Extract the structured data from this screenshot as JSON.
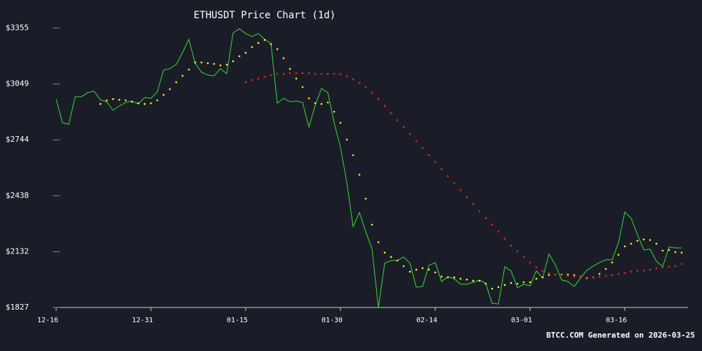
{
  "chart_data": {
    "type": "line",
    "title": "ETHUSDT Price Chart (1d)",
    "annotation": "BTCC.COM Generated on 2026-03-25",
    "categories": [
      "12-16",
      null,
      null,
      null,
      null,
      null,
      null,
      null,
      null,
      null,
      null,
      null,
      null,
      null,
      null,
      "12-31",
      null,
      null,
      null,
      null,
      null,
      null,
      null,
      null,
      null,
      null,
      null,
      null,
      null,
      null,
      "01-15",
      null,
      null,
      null,
      null,
      null,
      null,
      null,
      null,
      null,
      null,
      null,
      null,
      null,
      null,
      "01-30",
      null,
      null,
      null,
      null,
      null,
      null,
      null,
      null,
      null,
      null,
      null,
      null,
      null,
      null,
      "02-14",
      null,
      null,
      null,
      null,
      null,
      null,
      null,
      null,
      null,
      null,
      null,
      null,
      null,
      null,
      "03-01",
      null,
      null,
      null,
      null,
      null,
      null,
      null,
      null,
      null,
      null,
      null,
      null,
      null,
      null,
      "03-16",
      null,
      null,
      null,
      null,
      null,
      null,
      null,
      null,
      null
    ],
    "ylim": [
      1827,
      3355
    ],
    "yticks": [
      {
        "value": 1827,
        "label": "$1827"
      },
      {
        "value": 2132,
        "label": "$2132"
      },
      {
        "value": 2438,
        "label": "$2438"
      },
      {
        "value": 2744,
        "label": "$2744"
      },
      {
        "value": 3049,
        "label": "$3049"
      },
      {
        "value": 3355,
        "label": "$3355"
      }
    ],
    "series": [
      {
        "color": "#33dd33",
        "style": "line",
        "values": [
          2967,
          2837,
          2829,
          2979,
          2979,
          3002,
          3010,
          2963,
          2952,
          2906,
          2929,
          2948,
          2956,
          2940,
          2975,
          2971,
          3006,
          3125,
          3133,
          3156,
          3221,
          3294,
          3163,
          3113,
          3098,
          3094,
          3133,
          3106,
          3328,
          3351,
          3325,
          3309,
          3325,
          3294,
          3271,
          2944,
          2971,
          2952,
          2956,
          2948,
          2814,
          2933,
          3025,
          3002,
          2837,
          2703,
          2511,
          2269,
          2346,
          2242,
          2146,
          1827,
          2069,
          2084,
          2084,
          2103,
          2069,
          1938,
          1942,
          2057,
          2073,
          1969,
          1996,
          1984,
          1954,
          1954,
          1965,
          1977,
          1958,
          1850,
          1846,
          2050,
          2027,
          1935,
          1954,
          1946,
          2027,
          1988,
          2119,
          2061,
          1977,
          1969,
          1942,
          1988,
          2031,
          2054,
          2073,
          2088,
          2088,
          2180,
          2349,
          2315,
          2226,
          2142,
          2146,
          2080,
          2050,
          2157,
          2153,
          2153
        ]
      },
      {
        "color": "#ffee33",
        "style": "points",
        "values": [
          null,
          null,
          null,
          null,
          null,
          null,
          null,
          2940,
          2960,
          2967,
          2963,
          2960,
          2952,
          2944,
          2940,
          2944,
          2960,
          2990,
          3021,
          3059,
          3094,
          3128,
          3167,
          3167,
          3163,
          3159,
          3151,
          3155,
          3174,
          3201,
          3220,
          3251,
          3274,
          3290,
          3267,
          3240,
          3190,
          3132,
          3079,
          3032,
          2971,
          2944,
          2940,
          2948,
          2898,
          2837,
          2745,
          2660,
          2553,
          2422,
          2280,
          2184,
          2127,
          2103,
          2084,
          2053,
          2023,
          2034,
          2042,
          2034,
          2019,
          1996,
          1992,
          1992,
          1984,
          1980,
          1973,
          1973,
          1957,
          1930,
          1938,
          1950,
          1961,
          1957,
          1965,
          1965,
          1984,
          1992,
          2004,
          2007,
          2007,
          2007,
          2004,
          1996,
          1988,
          1992,
          2011,
          2038,
          2073,
          2115,
          2161,
          2176,
          2192,
          2199,
          2196,
          2176,
          2138,
          2142,
          2130,
          2127
        ]
      },
      {
        "color": "#ee2222",
        "style": "points",
        "values": [
          null,
          null,
          null,
          null,
          null,
          null,
          null,
          null,
          null,
          null,
          null,
          null,
          null,
          null,
          null,
          null,
          null,
          null,
          null,
          null,
          null,
          null,
          null,
          null,
          null,
          null,
          null,
          null,
          null,
          null,
          3059,
          3071,
          3079,
          3090,
          3098,
          3105,
          3105,
          3109,
          3109,
          3109,
          3109,
          3105,
          3105,
          3105,
          3105,
          3102,
          3090,
          3075,
          3056,
          3032,
          3002,
          2967,
          2929,
          2890,
          2852,
          2814,
          2775,
          2737,
          2699,
          2660,
          2622,
          2583,
          2545,
          2507,
          2468,
          2430,
          2392,
          2353,
          2315,
          2280,
          2242,
          2203,
          2165,
          2134,
          2103,
          2073,
          2046,
          2027,
          2015,
          2007,
          2004,
          2000,
          1996,
          1996,
          1992,
          1992,
          1996,
          2000,
          2004,
          2011,
          2015,
          2023,
          2027,
          2030,
          2034,
          2042,
          2046,
          2050,
          2053,
          2065
        ]
      }
    ]
  }
}
